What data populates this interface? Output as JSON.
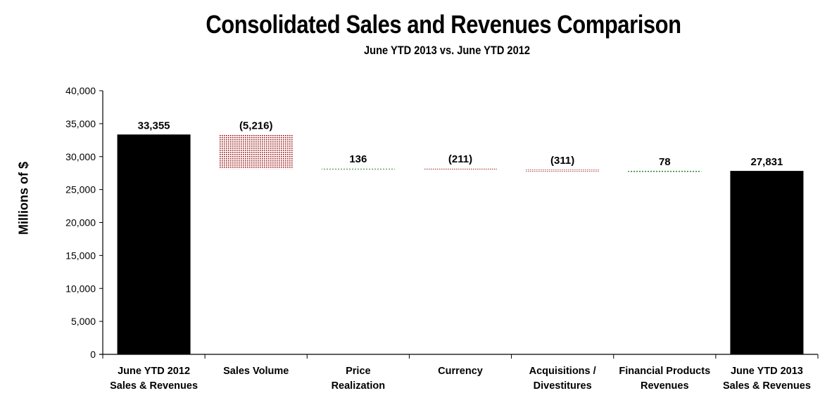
{
  "chart_data": {
    "type": "waterfall",
    "title": "Consolidated Sales and Revenues Comparison",
    "subtitle": "June YTD 2013 vs. June YTD 2012",
    "xlabel": "",
    "ylabel": "Millions of $",
    "ylim": [
      0,
      40000
    ],
    "yticks": [
      0,
      5000,
      10000,
      15000,
      20000,
      25000,
      30000,
      35000,
      40000
    ],
    "ytick_labels": [
      "0",
      "5,000",
      "10,000",
      "15,000",
      "20,000",
      "25,000",
      "30,000",
      "35,000",
      "40,000"
    ],
    "grid": false,
    "legend": "none",
    "categories": [
      [
        "June YTD 2012",
        "Sales & Revenues"
      ],
      [
        "Sales Volume"
      ],
      [
        "Price",
        "Realization"
      ],
      [
        "Currency"
      ],
      [
        "Acquisitions /",
        "Divestitures"
      ],
      [
        "Financial Products",
        "Revenues"
      ],
      [
        "June YTD 2013",
        "Sales & Revenues"
      ]
    ],
    "bars": [
      {
        "kind": "total",
        "value": 33355,
        "label": "33,355"
      },
      {
        "kind": "decrease",
        "value": -5216,
        "label": "(5,216)"
      },
      {
        "kind": "increase",
        "value": 136,
        "label": "136"
      },
      {
        "kind": "decrease",
        "value": -211,
        "label": "(211)"
      },
      {
        "kind": "decrease",
        "value": -311,
        "label": "(311)"
      },
      {
        "kind": "increase",
        "value": 78,
        "label": "78"
      },
      {
        "kind": "total",
        "value": 27831,
        "label": "27,831"
      }
    ],
    "colors": {
      "total": "#000000",
      "decrease": "#9b1b1b",
      "increase": "#1f7a1f"
    }
  }
}
